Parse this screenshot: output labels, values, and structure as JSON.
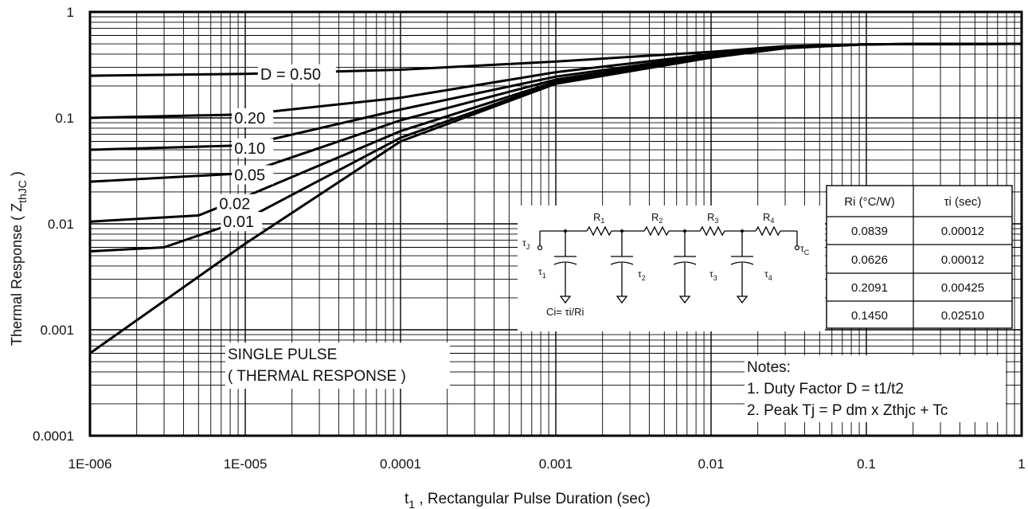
{
  "chart_data": {
    "type": "line",
    "scale": {
      "x": "log",
      "y": "log"
    },
    "xlim": [
      1e-06,
      1
    ],
    "ylim": [
      0.0001,
      1
    ],
    "xlabel_main": "t",
    "xlabel_sub": "1",
    "xlabel_rest": " , Rectangular Pulse Duration (sec)",
    "ylabel": "Thermal Response ( Z",
    "ylabel_sub": "thJC",
    "ylabel_close": " )",
    "x_ticks": [
      {
        "value": 1e-06,
        "label": "1E-006"
      },
      {
        "value": 1e-05,
        "label": "1E-005"
      },
      {
        "value": 0.0001,
        "label": "0.0001"
      },
      {
        "value": 0.001,
        "label": "0.001"
      },
      {
        "value": 0.01,
        "label": "0.01"
      },
      {
        "value": 0.1,
        "label": "0.1"
      },
      {
        "value": 1,
        "label": "1"
      }
    ],
    "y_ticks": [
      {
        "value": 0.0001,
        "label": "0.0001"
      },
      {
        "value": 0.001,
        "label": "0.001"
      },
      {
        "value": 0.01,
        "label": "0.01"
      },
      {
        "value": 0.1,
        "label": "0.1"
      },
      {
        "value": 1,
        "label": "1"
      }
    ],
    "grid": true,
    "series": [
      {
        "name": "D = 0.50",
        "label_x": 1.25e-05,
        "label_y": 0.26,
        "points": [
          [
            1e-06,
            0.25
          ],
          [
            1e-05,
            0.26
          ],
          [
            0.0001,
            0.285
          ],
          [
            0.001,
            0.34
          ],
          [
            0.01,
            0.42
          ],
          [
            0.03,
            0.475
          ],
          [
            0.1,
            0.495
          ],
          [
            1,
            0.5
          ]
        ]
      },
      {
        "name": "0.20",
        "label_x": 8.5e-06,
        "label_y": 0.1,
        "points": [
          [
            1e-06,
            0.1
          ],
          [
            1e-05,
            0.108
          ],
          [
            0.0001,
            0.155
          ],
          [
            0.001,
            0.27
          ],
          [
            0.01,
            0.4
          ],
          [
            0.03,
            0.47
          ],
          [
            0.1,
            0.495
          ],
          [
            1,
            0.5
          ]
        ]
      },
      {
        "name": "0.10",
        "label_x": 8.5e-06,
        "label_y": 0.052,
        "points": [
          [
            1e-06,
            0.05
          ],
          [
            1e-05,
            0.055
          ],
          [
            0.0001,
            0.12
          ],
          [
            0.001,
            0.245
          ],
          [
            0.01,
            0.39
          ],
          [
            0.03,
            0.465
          ],
          [
            0.1,
            0.495
          ],
          [
            1,
            0.5
          ]
        ]
      },
      {
        "name": "0.05",
        "label_x": 8.5e-06,
        "label_y": 0.029,
        "points": [
          [
            1e-06,
            0.025
          ],
          [
            1e-05,
            0.03
          ],
          [
            0.0001,
            0.095
          ],
          [
            0.001,
            0.23
          ],
          [
            0.01,
            0.385
          ],
          [
            0.03,
            0.46
          ],
          [
            0.1,
            0.495
          ],
          [
            1,
            0.5
          ]
        ]
      },
      {
        "name": "0.02",
        "label_x": 6.8e-06,
        "label_y": 0.0155,
        "points": [
          [
            1e-06,
            0.0105
          ],
          [
            5e-06,
            0.012
          ],
          [
            1e-05,
            0.018
          ],
          [
            0.0001,
            0.075
          ],
          [
            0.001,
            0.22
          ],
          [
            0.01,
            0.38
          ],
          [
            0.03,
            0.46
          ],
          [
            0.1,
            0.495
          ],
          [
            1,
            0.5
          ]
        ]
      },
      {
        "name": "0.01",
        "label_x": 7.2e-06,
        "label_y": 0.0105,
        "points": [
          [
            1e-06,
            0.0055
          ],
          [
            3e-06,
            0.006
          ],
          [
            1e-05,
            0.011
          ],
          [
            0.0001,
            0.065
          ],
          [
            0.001,
            0.215
          ],
          [
            0.01,
            0.375
          ],
          [
            0.03,
            0.455
          ],
          [
            0.1,
            0.495
          ],
          [
            1,
            0.5
          ]
        ]
      },
      {
        "name": "SINGLE PULSE",
        "label_x": null,
        "label_y": null,
        "points": [
          [
            1e-06,
            0.0006
          ],
          [
            1e-05,
            0.0065
          ],
          [
            0.0001,
            0.06
          ],
          [
            0.001,
            0.21
          ],
          [
            0.01,
            0.37
          ],
          [
            0.03,
            0.455
          ],
          [
            0.1,
            0.495
          ],
          [
            1,
            0.5
          ]
        ]
      }
    ],
    "annotations": {
      "single_pulse": [
        "SINGLE PULSE",
        "( THERMAL RESPONSE )"
      ],
      "notes": [
        "Notes:",
        "1. Duty Factor D = t1/t2",
        "2. Peak Tj = P dm x Zthjc + Tc"
      ]
    }
  },
  "circuit": {
    "tau_j": "τ",
    "tau_j_sub": "J",
    "tau_c": "τ",
    "tau_c_sub": "C",
    "resistors": [
      {
        "label": "R",
        "sub": "1"
      },
      {
        "label": "R",
        "sub": "2"
      },
      {
        "label": "R",
        "sub": "3"
      },
      {
        "label": "R",
        "sub": "4"
      }
    ],
    "caps": [
      {
        "label": "τ",
        "sub": "1"
      },
      {
        "label": "τ",
        "sub": "2"
      },
      {
        "label": "τ",
        "sub": "3"
      },
      {
        "label": "τ",
        "sub": "4"
      }
    ],
    "ci_label": "Ci= τi/Ri"
  },
  "rc_table": {
    "headers": [
      "Ri (°C/W)",
      "τi (sec)"
    ],
    "rows": [
      [
        "0.0839",
        "0.00012"
      ],
      [
        "0.0626",
        "0.00012"
      ],
      [
        "0.2091",
        "0.00425"
      ],
      [
        "0.1450",
        "0.02510"
      ]
    ]
  }
}
